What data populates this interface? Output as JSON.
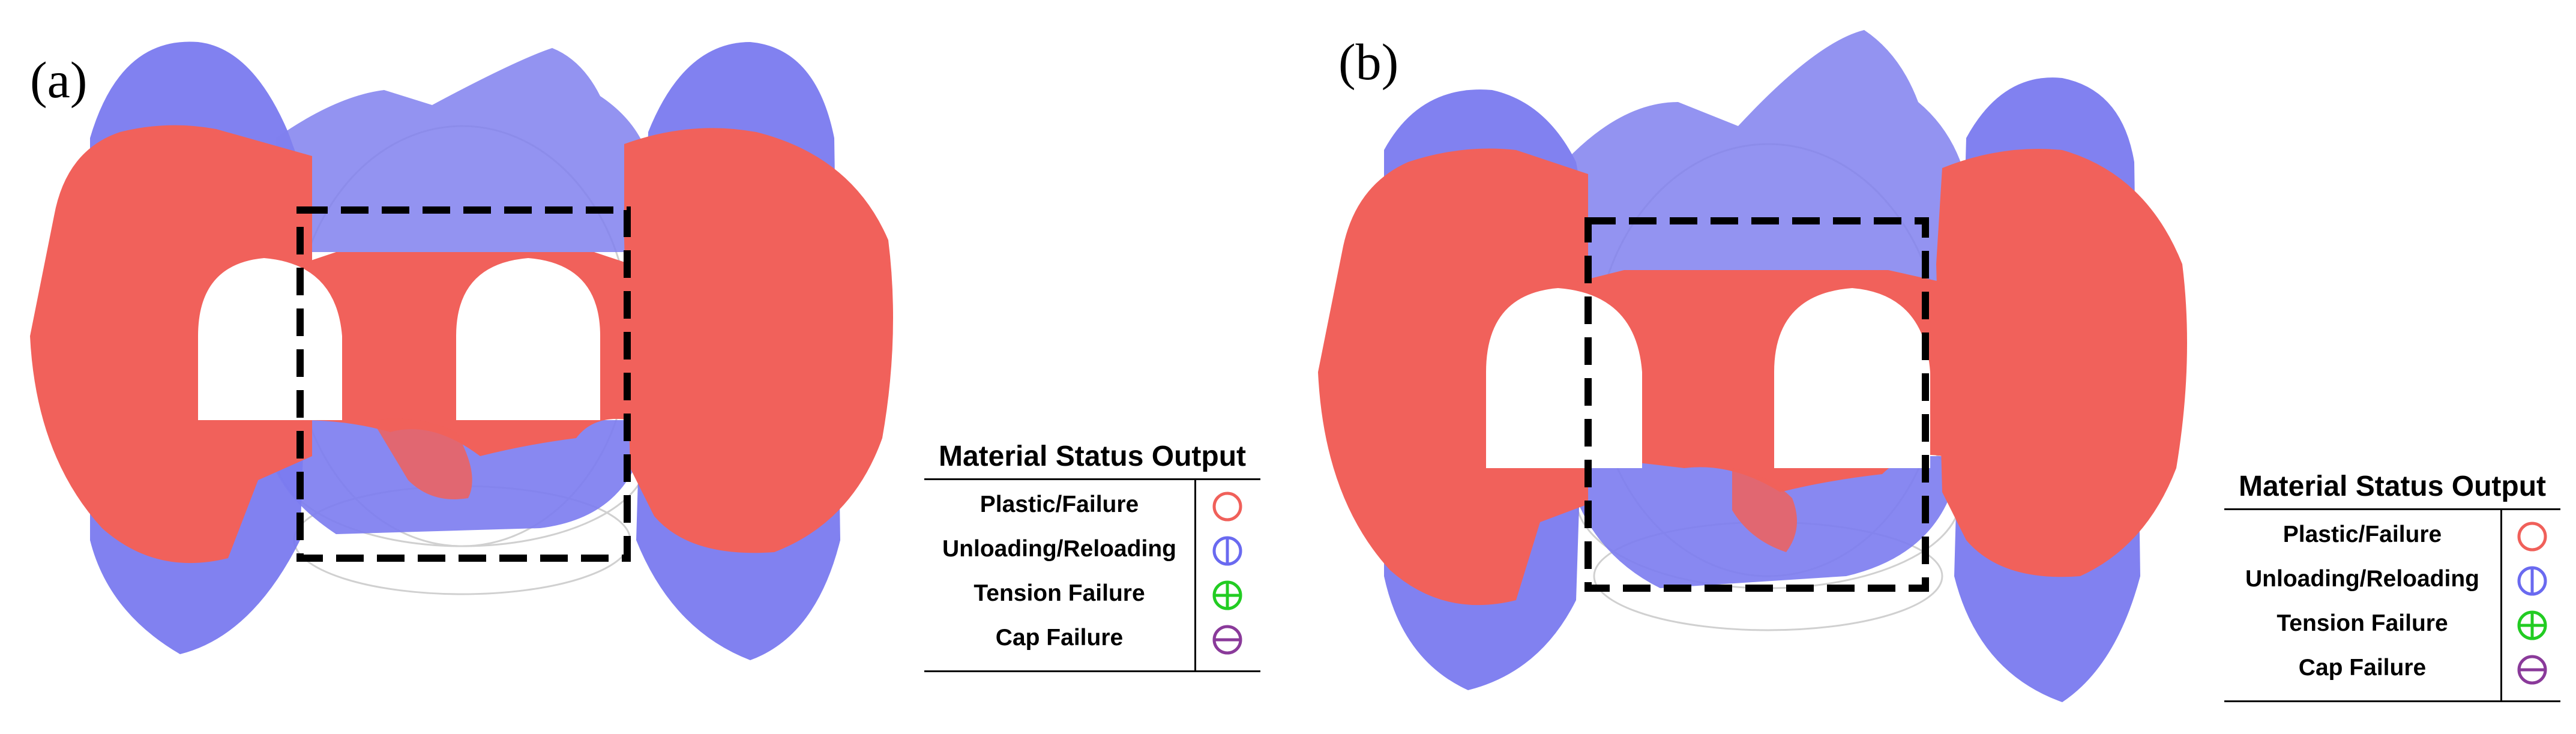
{
  "panels": [
    {
      "label": "(a)"
    },
    {
      "label": "(b)"
    }
  ],
  "legend": {
    "title": "Material Status Output",
    "items": [
      {
        "label": "Plastic/Failure",
        "icon": "circle-icon",
        "color": "#f0605a"
      },
      {
        "label": "Unloading/Reloading",
        "icon": "circle-vertical-bar-icon",
        "color": "#6a6af0"
      },
      {
        "label": "Tension Failure",
        "icon": "circle-plus-icon",
        "color": "#22cc22"
      },
      {
        "label": "Cap Failure",
        "icon": "circle-minus-icon",
        "color": "#8a3a9a"
      }
    ]
  },
  "colors": {
    "plastic": "#f0605a",
    "unloading": "#6a6af0",
    "box": "#000000"
  }
}
